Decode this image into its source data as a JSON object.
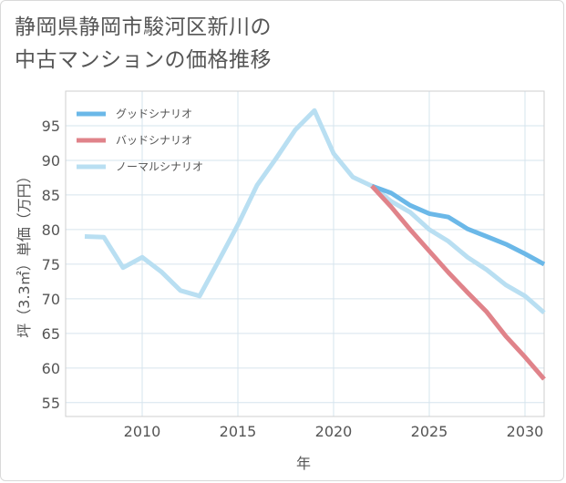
{
  "chart_data": {
    "type": "line",
    "title": "静岡県静岡市駿河区新川の中古マンションの価格推移",
    "title_line1": "静岡県静岡市駿河区新川の",
    "title_line2": "中古マンションの価格推移",
    "xlabel": "年",
    "ylabel": "坪（3.3㎡）単価（万円）",
    "xlim": [
      2006,
      2031
    ],
    "ylim": [
      53,
      100
    ],
    "xticks": [
      2010,
      2015,
      2020,
      2025,
      2030
    ],
    "yticks": [
      55,
      60,
      65,
      70,
      75,
      80,
      85,
      90,
      95
    ],
    "grid": true,
    "legend_position": "top-left",
    "series": [
      {
        "name": "グッドシナリオ",
        "color": "#6bb8e8",
        "x": [
          2022,
          2023,
          2024,
          2025,
          2026,
          2027,
          2028,
          2029,
          2030,
          2031
        ],
        "values": [
          86.3,
          85.3,
          83.5,
          82.3,
          81.8,
          80.1,
          79.0,
          77.9,
          76.5,
          75.0
        ]
      },
      {
        "name": "バッドシナリオ",
        "color": "#e0838a",
        "x": [
          2022,
          2023,
          2024,
          2025,
          2026,
          2027,
          2028,
          2029,
          2030,
          2031
        ],
        "values": [
          86.3,
          83.3,
          80.0,
          76.9,
          73.8,
          70.9,
          68.1,
          64.6,
          61.6,
          58.4
        ]
      },
      {
        "name": "ノーマルシナリオ",
        "color": "#b9dff2",
        "x": [
          2007,
          2008,
          2009,
          2010,
          2011,
          2012,
          2013,
          2014,
          2015,
          2016,
          2017,
          2018,
          2019,
          2020,
          2021,
          2022,
          2023,
          2024,
          2025,
          2026,
          2027,
          2028,
          2029,
          2030,
          2031
        ],
        "values": [
          79.0,
          78.9,
          74.5,
          76.0,
          73.9,
          71.2,
          70.4,
          75.5,
          80.7,
          86.4,
          90.3,
          94.4,
          97.2,
          91.0,
          87.6,
          86.3,
          84.1,
          82.5,
          80.0,
          78.3,
          76.0,
          74.2,
          72.0,
          70.4,
          68.0
        ]
      }
    ]
  }
}
